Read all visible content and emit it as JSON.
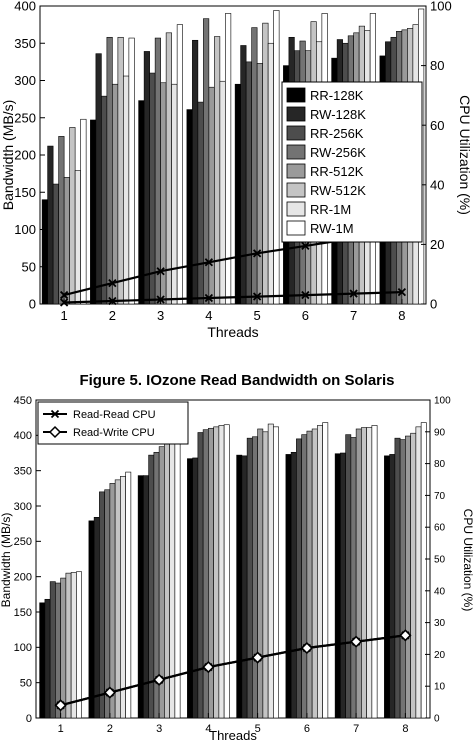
{
  "figure_caption": "Figure 5. IOzone Read Bandwidth on Solaris",
  "chart_data": [
    {
      "type": "bar",
      "xlabel": "Threads",
      "ylabel": "Bandwidth (MB/s)",
      "y2label": "CPU Utilization (%)",
      "categories": [
        "1",
        "2",
        "3",
        "4",
        "5",
        "6",
        "7",
        "8"
      ],
      "ylim": [
        0,
        400
      ],
      "y2lim": [
        0,
        100
      ],
      "yticks": [
        0,
        50,
        100,
        150,
        200,
        250,
        300,
        350,
        400
      ],
      "y2ticks": [
        0,
        20,
        40,
        60,
        80,
        100
      ],
      "grid": false,
      "legend_position": "right",
      "series": [
        {
          "name": "RR-128K",
          "color": "#000000",
          "values": [
            140,
            247,
            273,
            261,
            295,
            320,
            330,
            333
          ]
        },
        {
          "name": "RW-128K",
          "color": "#262626",
          "values": [
            212,
            336,
            339,
            354,
            347,
            358,
            355,
            352
          ]
        },
        {
          "name": "RR-256K",
          "color": "#4d4d4d",
          "values": [
            161,
            279,
            310,
            271,
            325,
            340,
            350,
            358
          ]
        },
        {
          "name": "RW-256K",
          "color": "#737373",
          "values": [
            225,
            358,
            357,
            383,
            371,
            353,
            360,
            366
          ]
        },
        {
          "name": "RR-512K",
          "color": "#9a9a9a",
          "values": [
            170,
            295,
            297,
            291,
            323,
            340,
            364,
            368
          ]
        },
        {
          "name": "RW-512K",
          "color": "#c4c4c4",
          "values": [
            237,
            358,
            364,
            359,
            377,
            379,
            373,
            370
          ]
        },
        {
          "name": "RR-1M",
          "color": "#e6e6e6",
          "values": [
            179,
            306,
            295,
            299,
            350,
            352,
            367,
            375
          ]
        },
        {
          "name": "RW-1M",
          "color": "#ffffff",
          "values": [
            248,
            357,
            375,
            390,
            394,
            390,
            390,
            396
          ]
        }
      ],
      "cpu_lines": [
        {
          "values": [
            3,
            7,
            11,
            14,
            17,
            19.5,
            22,
            23.5
          ]
        },
        {
          "values": [
            0.5,
            1,
            1.5,
            2,
            2.5,
            3,
            3.5,
            4
          ]
        }
      ]
    },
    {
      "type": "bar",
      "xlabel": "Threads",
      "ylabel": "Bandwidth (MB/s)",
      "y2label": "CPU Utilization (%)",
      "categories": [
        "1",
        "2",
        "3",
        "4",
        "5",
        "6",
        "7",
        "8"
      ],
      "ylim": [
        0,
        450
      ],
      "y2lim": [
        0,
        100
      ],
      "yticks": [
        0,
        50,
        100,
        150,
        200,
        250,
        300,
        350,
        400,
        450
      ],
      "y2ticks": [
        0,
        10,
        20,
        30,
        40,
        50,
        60,
        70,
        80,
        90,
        100
      ],
      "grid": false,
      "legend_position": "top-left",
      "series": [
        {
          "color": "#000000",
          "values": [
            163,
            279,
            343,
            367,
            372,
            373,
            374,
            371
          ]
        },
        {
          "color": "#262626",
          "values": [
            168,
            284,
            343,
            368,
            371,
            376,
            375,
            373
          ]
        },
        {
          "color": "#4d4d4d",
          "values": [
            193,
            320,
            372,
            404,
            396,
            395,
            401,
            396
          ]
        },
        {
          "color": "#737373",
          "values": [
            191,
            323,
            376,
            408,
            398,
            401,
            397,
            394
          ]
        },
        {
          "color": "#9a9a9a",
          "values": [
            198,
            332,
            384,
            410,
            409,
            406,
            409,
            399
          ]
        },
        {
          "color": "#c4c4c4",
          "values": [
            205,
            337,
            392,
            412,
            405,
            409,
            411,
            403
          ]
        },
        {
          "color": "#e6e6e6",
          "values": [
            206,
            342,
            397,
            414,
            416,
            414,
            411,
            412
          ]
        },
        {
          "color": "#ffffff",
          "values": [
            207,
            348,
            407,
            415,
            412,
            418,
            414,
            418
          ]
        }
      ],
      "cpu_lines": [
        {
          "name": "Read-Read CPU",
          "marker": "x",
          "values": [
            4,
            8,
            12,
            16,
            19,
            22,
            24,
            26
          ]
        },
        {
          "name": "Read-Write CPU",
          "marker": "diamond",
          "values": [
            4,
            8,
            12,
            16,
            19,
            22,
            24,
            26
          ]
        }
      ]
    }
  ]
}
